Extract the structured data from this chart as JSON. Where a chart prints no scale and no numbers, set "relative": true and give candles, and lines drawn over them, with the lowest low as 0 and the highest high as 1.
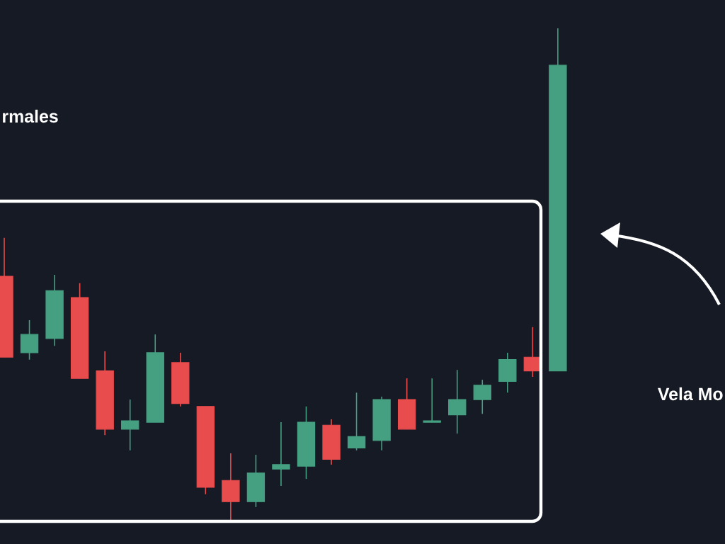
{
  "chart_data": {
    "type": "candlestick",
    "relative": true,
    "categories": [
      null,
      null,
      null,
      null,
      null,
      null,
      null,
      null,
      null,
      null,
      null,
      null,
      null,
      null,
      null,
      null,
      null,
      null,
      null,
      null,
      null,
      null,
      null
    ],
    "ohlc": [
      [
        0.497,
        0.575,
        0.333,
        0.333
      ],
      [
        0.342,
        0.408,
        0.328,
        0.379
      ],
      [
        0.371,
        0.5,
        0.356,
        0.468
      ],
      [
        0.454,
        0.483,
        0.29,
        0.29
      ],
      [
        0.305,
        0.345,
        0.175,
        0.187
      ],
      [
        0.187,
        0.247,
        0.144,
        0.204
      ],
      [
        0.201,
        0.379,
        0.201,
        0.342
      ],
      [
        0.322,
        0.342,
        0.233,
        0.239
      ],
      [
        0.233,
        0.233,
        0.055,
        0.069
      ],
      [
        0.083,
        0.138,
        0.0,
        0.04
      ],
      [
        0.04,
        0.135,
        0.029,
        0.098
      ],
      [
        0.106,
        0.201,
        0.072,
        0.115
      ],
      [
        0.112,
        0.233,
        0.086,
        0.201
      ],
      [
        0.195,
        0.207,
        0.115,
        0.126
      ],
      [
        0.149,
        0.261,
        0.144,
        0.172
      ],
      [
        0.164,
        0.253,
        0.144,
        0.247
      ],
      [
        0.247,
        0.29,
        0.187,
        0.187
      ],
      [
        0.201,
        0.29,
        0.201,
        0.204
      ],
      [
        0.216,
        0.307,
        0.178,
        0.247
      ],
      [
        0.247,
        0.287,
        0.218,
        0.276
      ],
      [
        0.284,
        0.342,
        0.261,
        0.328
      ],
      [
        0.333,
        0.394,
        0.293,
        0.305
      ],
      [
        0.305,
        1.0,
        0.305,
        0.925
      ]
    ],
    "colors": [
      "#e84c4c",
      "#45a081",
      "#45a081",
      "#e84c4c",
      "#e84c4c",
      "#45a081",
      "#45a081",
      "#e84c4c",
      "#e84c4c",
      "#e84c4c",
      "#45a081",
      "#45a081",
      "#45a081",
      "#e84c4c",
      "#45a081",
      "#45a081",
      "#e84c4c",
      "#45a081",
      "#45a081",
      "#45a081",
      "#45a081",
      "#e84c4c",
      "#45a081"
    ],
    "annotations": [
      "rmales",
      "Vela Mo"
    ]
  }
}
